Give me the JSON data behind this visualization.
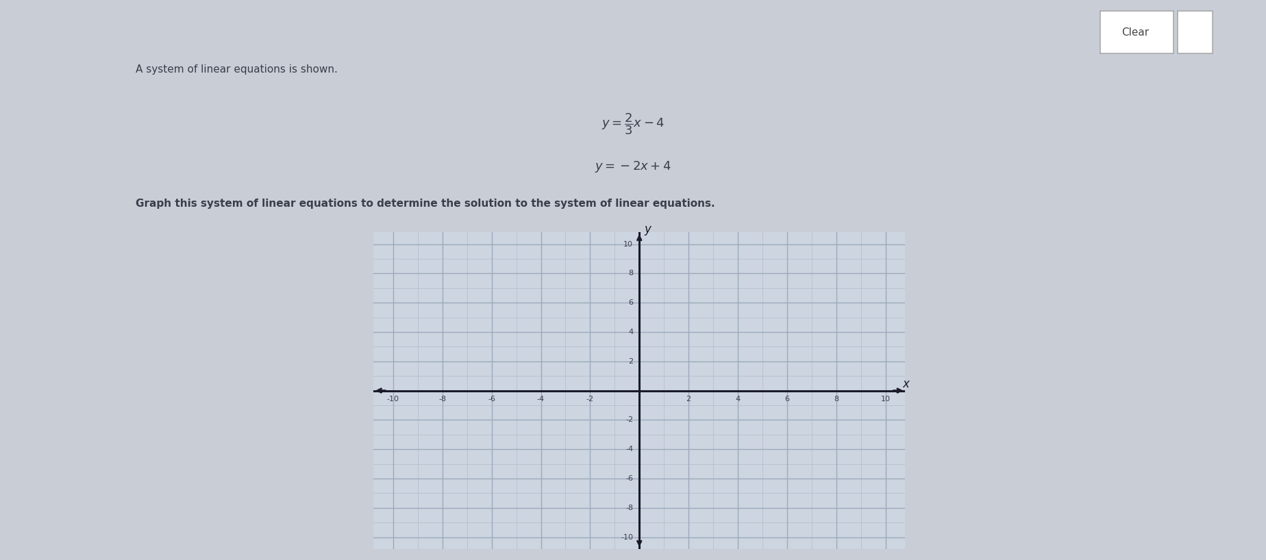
{
  "page_bg": "#c8cdd6",
  "top_bar_bg": "#9aa0ad",
  "title_text": "A system of linear equations is shown.",
  "instruction_text": "Graph this system of linear equations to determine the solution to the system of linear equations.",
  "eq1_slope": 0.6667,
  "eq1_intercept": -4,
  "eq2_slope": -2,
  "eq2_intercept": 4,
  "xmin": -10,
  "xmax": 10,
  "ymin": -10,
  "ymax": 10,
  "xticks": [
    -10,
    -8,
    -6,
    -4,
    -2,
    2,
    4,
    6,
    8,
    10
  ],
  "yticks": [
    -10,
    -8,
    -6,
    -4,
    -2,
    2,
    4,
    6,
    8,
    10
  ],
  "grid_major_color": "#9baabb",
  "grid_minor_color": "#b0bcc8",
  "axis_color": "#1a1a2a",
  "graph_bg": "#cdd5e0",
  "clear_btn_text": "Clear",
  "text_color": "#3a3d4a",
  "title_fontsize": 11,
  "instr_fontsize": 11,
  "eq_fontsize": 13,
  "tick_fontsize": 8
}
